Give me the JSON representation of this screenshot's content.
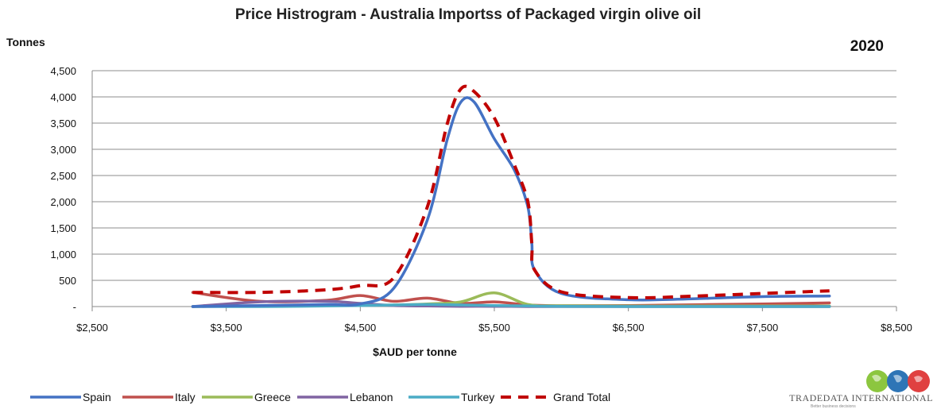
{
  "brand": {
    "name": "TRADEDATA INTERNATIONAL",
    "tagline": "Better business decisions"
  },
  "chart_data": {
    "type": "line",
    "title": "Price Histrogram - Australia Importss of Packaged virgin olive oil",
    "year_label": "2020",
    "ylabel": "Tonnes",
    "xlabel": "$AUD  per tonne",
    "xlim": [
      2500,
      8500
    ],
    "ylim": [
      0,
      4500
    ],
    "x_ticks": [
      2500,
      3500,
      4500,
      5500,
      6500,
      7500,
      8500
    ],
    "x_tick_labels": [
      "$2,500",
      "$3,500",
      "$4,500",
      "$5,500",
      "$6,500",
      "$7,500",
      "$8,500"
    ],
    "y_ticks": [
      0,
      500,
      1000,
      1500,
      2000,
      2500,
      3000,
      3500,
      4000,
      4500
    ],
    "y_tick_labels": [
      "-",
      "500",
      "1,000",
      "1,500",
      "2,000",
      "2,500",
      "3,000",
      "3,500",
      "4,000",
      "4,500"
    ],
    "grid": true,
    "legend_position": "bottom",
    "series": [
      {
        "name": "Spain",
        "color": "#4472C4",
        "dash": false,
        "points": [
          [
            3250,
            0
          ],
          [
            3750,
            20
          ],
          [
            4250,
            40
          ],
          [
            4500,
            50
          ],
          [
            4750,
            350
          ],
          [
            5000,
            1650
          ],
          [
            5150,
            3200
          ],
          [
            5250,
            3900
          ],
          [
            5350,
            3900
          ],
          [
            5500,
            3200
          ],
          [
            5650,
            2600
          ],
          [
            5750,
            1900
          ],
          [
            5780,
            1200
          ],
          [
            5800,
            700
          ],
          [
            6000,
            250
          ],
          [
            6500,
            130
          ],
          [
            7000,
            150
          ],
          [
            7500,
            190
          ],
          [
            8000,
            200
          ]
        ]
      },
      {
        "name": "Italy",
        "color": "#C0504D",
        "dash": false,
        "points": [
          [
            3250,
            270
          ],
          [
            3750,
            100
          ],
          [
            4250,
            120
          ],
          [
            4500,
            210
          ],
          [
            4750,
            100
          ],
          [
            5000,
            160
          ],
          [
            5250,
            60
          ],
          [
            5500,
            90
          ],
          [
            5750,
            30
          ],
          [
            6000,
            15
          ],
          [
            6500,
            20
          ],
          [
            7000,
            35
          ],
          [
            7500,
            50
          ],
          [
            8000,
            70
          ]
        ]
      },
      {
        "name": "Greece",
        "color": "#9BBB59",
        "dash": false,
        "points": [
          [
            3250,
            0
          ],
          [
            3750,
            10
          ],
          [
            4250,
            20
          ],
          [
            4500,
            25
          ],
          [
            4750,
            30
          ],
          [
            5000,
            50
          ],
          [
            5250,
            90
          ],
          [
            5500,
            260
          ],
          [
            5750,
            40
          ],
          [
            6000,
            15
          ],
          [
            6500,
            10
          ],
          [
            7000,
            10
          ],
          [
            7500,
            10
          ],
          [
            8000,
            10
          ]
        ]
      },
      {
        "name": "Lebanon",
        "color": "#8064A2",
        "dash": false,
        "points": [
          [
            3250,
            0
          ],
          [
            3750,
            90
          ],
          [
            4250,
            100
          ],
          [
            4500,
            60
          ],
          [
            4750,
            20
          ],
          [
            5000,
            10
          ],
          [
            5250,
            5
          ],
          [
            5500,
            5
          ],
          [
            5750,
            0
          ],
          [
            6000,
            0
          ],
          [
            6500,
            0
          ],
          [
            7000,
            0
          ],
          [
            7500,
            0
          ],
          [
            8000,
            0
          ]
        ]
      },
      {
        "name": "Turkey",
        "color": "#4BACC6",
        "dash": false,
        "points": [
          [
            3250,
            0
          ],
          [
            3750,
            0
          ],
          [
            4250,
            10
          ],
          [
            4500,
            20
          ],
          [
            4750,
            30
          ],
          [
            5000,
            40
          ],
          [
            5250,
            30
          ],
          [
            5500,
            20
          ],
          [
            5750,
            10
          ],
          [
            6000,
            5
          ],
          [
            6500,
            0
          ],
          [
            7000,
            0
          ],
          [
            7500,
            0
          ],
          [
            8000,
            0
          ]
        ]
      },
      {
        "name": "Grand Total",
        "color": "#C00000",
        "dash": true,
        "points": [
          [
            3250,
            270
          ],
          [
            3750,
            270
          ],
          [
            4250,
            320
          ],
          [
            4500,
            400
          ],
          [
            4750,
            550
          ],
          [
            5000,
            1900
          ],
          [
            5150,
            3500
          ],
          [
            5250,
            4150
          ],
          [
            5350,
            4100
          ],
          [
            5500,
            3600
          ],
          [
            5650,
            2700
          ],
          [
            5750,
            2000
          ],
          [
            5780,
            1200
          ],
          [
            5800,
            700
          ],
          [
            6000,
            280
          ],
          [
            6500,
            170
          ],
          [
            7000,
            200
          ],
          [
            7500,
            250
          ],
          [
            8000,
            300
          ]
        ]
      }
    ]
  }
}
